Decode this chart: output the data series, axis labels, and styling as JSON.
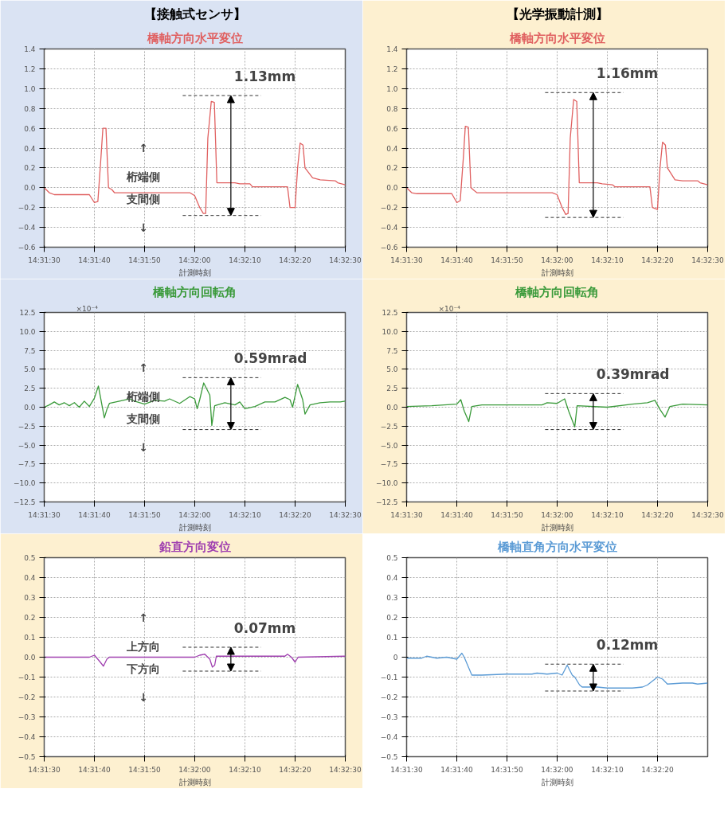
{
  "chart_data": [
    {
      "type": "line",
      "subtitle": "【接触式センサ】",
      "title": "橋軸方向水平変位",
      "xlabel": "計測時刻",
      "xlim": [
        14.525,
        14.54167
      ],
      "ylim": [
        -0.6,
        1.4
      ],
      "xticks": [
        {
          "value": 14.525,
          "label": "14:31:30"
        },
        {
          "value": 14.52778,
          "label": "14:31:40"
        },
        {
          "value": 14.53056,
          "label": "14:31:50"
        },
        {
          "value": 14.53333,
          "label": "14:32:00"
        },
        {
          "value": 14.53611,
          "label": "14:32:10"
        },
        {
          "value": 14.53889,
          "label": "14:32:20"
        },
        {
          "value": 14.54167,
          "label": "14:32:30"
        }
      ],
      "yticks": [
        {
          "value": -0.6,
          "label": "−0.6"
        },
        {
          "value": -0.4,
          "label": "−0.4"
        },
        {
          "value": -0.2,
          "label": "−0.2"
        },
        {
          "value": 0,
          "label": "0.0"
        },
        0.2,
        0.4,
        0.6,
        0.8,
        {
          "value": 1,
          "label": "1.0"
        },
        1.2,
        1.4
      ],
      "grid": true,
      "series": [
        {
          "color": "#e06060",
          "x": [
            14.525,
            14.52528,
            14.52556,
            14.5275,
            14.52778,
            14.52797,
            14.52814,
            14.52825,
            14.52842,
            14.52856,
            14.52875,
            14.52889,
            14.53306,
            14.53333,
            14.53361,
            14.53381,
            14.53394,
            14.53406,
            14.53425,
            14.53442,
            14.53456,
            14.53556,
            14.53583,
            14.53639,
            14.53653,
            14.53847,
            14.53861,
            14.53889,
            14.53903,
            14.53917,
            14.53933,
            14.53944,
            14.53986,
            14.54028,
            14.54111,
            14.54125,
            14.54167
          ],
          "values": [
            0.0,
            -0.05,
            -0.07,
            -0.07,
            -0.15,
            -0.14,
            0.3,
            0.6,
            0.6,
            0.0,
            -0.02,
            -0.05,
            -0.05,
            -0.08,
            -0.2,
            -0.26,
            -0.26,
            0.5,
            0.87,
            0.86,
            0.05,
            0.05,
            0.04,
            0.04,
            0.01,
            0.01,
            -0.2,
            -0.2,
            0.2,
            0.45,
            0.43,
            0.2,
            0.1,
            0.08,
            0.07,
            0.05,
            0.03
          ]
        }
      ],
      "ref_lines": [
        {
          "axis": "y",
          "value": 0.93,
          "color": "#333333",
          "line_style": "dashed"
        },
        {
          "axis": "y",
          "value": -0.28,
          "color": "#333333",
          "line_style": "dashed"
        }
      ],
      "annotations": [
        "1.13mm",
        "↑",
        "桁端側",
        "支間側",
        "↓"
      ]
    },
    {
      "type": "line",
      "subtitle": "【光学振動計測】",
      "title": "橋軸方向水平変位",
      "xlabel": "計測時刻",
      "xlim": [
        14.525,
        14.54167
      ],
      "ylim": [
        -0.6,
        1.4
      ],
      "xticks": [
        {
          "value": 14.525,
          "label": "14:31:30"
        },
        {
          "value": 14.52778,
          "label": "14:31:40"
        },
        {
          "value": 14.53056,
          "label": "14:31:50"
        },
        {
          "value": 14.53333,
          "label": "14:32:00"
        },
        {
          "value": 14.53611,
          "label": "14:32:10"
        },
        {
          "value": 14.53889,
          "label": "14:32:20"
        },
        {
          "value": 14.54167,
          "label": "14:32:30"
        }
      ],
      "yticks": [
        {
          "value": -0.6,
          "label": "−0.6"
        },
        {
          "value": -0.4,
          "label": "−0.4"
        },
        {
          "value": -0.2,
          "label": "−0.2"
        },
        {
          "value": 0,
          "label": "0.0"
        },
        0.2,
        0.4,
        0.6,
        0.8,
        {
          "value": 1,
          "label": "1.0"
        },
        1.2,
        1.4
      ],
      "grid": true,
      "series": [
        {
          "color": "#e06060",
          "x": [
            14.525,
            14.52528,
            14.52556,
            14.5275,
            14.52778,
            14.52797,
            14.52814,
            14.52825,
            14.52842,
            14.52856,
            14.52875,
            14.52889,
            14.53306,
            14.53333,
            14.53361,
            14.53381,
            14.53394,
            14.53406,
            14.53425,
            14.53442,
            14.53456,
            14.53556,
            14.53583,
            14.53639,
            14.53653,
            14.53847,
            14.53861,
            14.53889,
            14.53903,
            14.53917,
            14.53933,
            14.53944,
            14.53986,
            14.54028,
            14.54111,
            14.54125,
            14.54167
          ],
          "values": [
            0.0,
            -0.05,
            -0.06,
            -0.06,
            -0.15,
            -0.13,
            0.3,
            0.62,
            0.61,
            0.0,
            -0.03,
            -0.05,
            -0.05,
            -0.07,
            -0.2,
            -0.27,
            -0.26,
            0.5,
            0.89,
            0.87,
            0.05,
            0.05,
            0.04,
            0.03,
            0.01,
            0.01,
            -0.2,
            -0.22,
            0.2,
            0.46,
            0.43,
            0.2,
            0.08,
            0.07,
            0.07,
            0.05,
            0.03
          ]
        }
      ],
      "ref_lines": [
        {
          "axis": "y",
          "value": 0.96,
          "color": "#333333",
          "line_style": "dashed"
        },
        {
          "axis": "y",
          "value": -0.3,
          "color": "#333333",
          "line_style": "dashed"
        }
      ],
      "annotations": [
        "1.16mm"
      ]
    },
    {
      "type": "line",
      "title": "橋軸方向回転角",
      "xlabel": "計測時刻",
      "ylabel": "×10⁻⁴",
      "xlim": [
        14.525,
        14.54167
      ],
      "ylim": [
        -12.5,
        12.5
      ],
      "xticks": [
        {
          "value": 14.525,
          "label": "14:31:30"
        },
        {
          "value": 14.52778,
          "label": "14:31:40"
        },
        {
          "value": 14.53056,
          "label": "14:31:50"
        },
        {
          "value": 14.53333,
          "label": "14:32:00"
        },
        {
          "value": 14.53611,
          "label": "14:32:10"
        },
        {
          "value": 14.53889,
          "label": "14:32:20"
        },
        {
          "value": 14.54167,
          "label": "14:32:30"
        }
      ],
      "yticks": [
        {
          "value": -12.5,
          "label": "−12.5"
        },
        {
          "value": -10,
          "label": "−10.0"
        },
        {
          "value": -7.5,
          "label": "−7.5"
        },
        {
          "value": -5,
          "label": "−5.0"
        },
        {
          "value": -2.5,
          "label": "−2.5"
        },
        {
          "value": 0,
          "label": "0.0"
        },
        2.5,
        {
          "value": 5,
          "label": "5.0"
        },
        7.5,
        {
          "value": 10,
          "label": "10.0"
        },
        12.5
      ],
      "grid": true,
      "series": [
        {
          "color": "#3a9a3a",
          "x": [
            14.525,
            14.52528,
            14.52556,
            14.52583,
            14.52611,
            14.52639,
            14.52667,
            14.52694,
            14.52722,
            14.5275,
            14.52778,
            14.528,
            14.52814,
            14.52833,
            14.52847,
            14.52861,
            14.52917,
            14.52972,
            14.53,
            14.53056,
            14.53111,
            14.53167,
            14.53194,
            14.5325,
            14.53306,
            14.53333,
            14.53347,
            14.53361,
            14.53383,
            14.53417,
            14.53428,
            14.53444,
            14.535,
            14.53556,
            14.53583,
            14.53611,
            14.53667,
            14.53722,
            14.53778,
            14.53833,
            14.53861,
            14.53875,
            14.53903,
            14.53931,
            14.53944,
            14.53972,
            14.54028,
            14.54083,
            14.54139,
            14.54167
          ],
          "values": [
            0.0,
            0.3,
            0.7,
            0.3,
            0.6,
            0.2,
            0.6,
            0.0,
            0.8,
            0.1,
            1.2,
            2.8,
            1.0,
            -1.4,
            -0.3,
            0.5,
            0.8,
            1.1,
            0.8,
            0.4,
            0.9,
            0.8,
            1.1,
            0.5,
            1.4,
            1.1,
            -0.2,
            1.0,
            3.2,
            1.6,
            -2.4,
            0.2,
            0.6,
            0.3,
            0.7,
            -0.2,
            0.1,
            0.7,
            0.7,
            1.3,
            1.0,
            0.0,
            3.0,
            1.0,
            -0.9,
            0.3,
            0.6,
            0.7,
            0.7,
            0.8
          ]
        }
      ],
      "ref_lines": [
        {
          "axis": "y",
          "value": 3.9,
          "color": "#333333",
          "line_style": "dashed"
        },
        {
          "axis": "y",
          "value": -2.95,
          "color": "#333333",
          "line_style": "dashed"
        }
      ],
      "annotations": [
        "0.59mrad",
        "↑",
        "桁端側",
        "支間側",
        "↓"
      ]
    },
    {
      "type": "line",
      "title": "橋軸方向回転角",
      "xlabel": "計測時刻",
      "ylabel": "×10⁻⁴",
      "xlim": [
        14.525,
        14.54167
      ],
      "ylim": [
        -12.5,
        12.5
      ],
      "xticks": [
        {
          "value": 14.525,
          "label": "14:31:30"
        },
        {
          "value": 14.52778,
          "label": "14:31:40"
        },
        {
          "value": 14.53056,
          "label": "14:31:50"
        },
        {
          "value": 14.53333,
          "label": "14:32:00"
        },
        {
          "value": 14.53611,
          "label": "14:32:10"
        },
        {
          "value": 14.53889,
          "label": "14:32:20"
        },
        {
          "value": 14.54167,
          "label": "14:32:30"
        }
      ],
      "yticks": [
        {
          "value": -12.5,
          "label": "−12.5"
        },
        {
          "value": -10,
          "label": "−10.0"
        },
        {
          "value": -7.5,
          "label": "−7.5"
        },
        {
          "value": -5,
          "label": "−5.0"
        },
        {
          "value": -2.5,
          "label": "−2.5"
        },
        {
          "value": 0,
          "label": "0.0"
        },
        2.5,
        {
          "value": 5,
          "label": "5.0"
        },
        7.5,
        {
          "value": 10,
          "label": "10.0"
        },
        12.5
      ],
      "grid": true,
      "series": [
        {
          "color": "#3a9a3a",
          "x": [
            14.525,
            14.52639,
            14.52778,
            14.528,
            14.52819,
            14.52844,
            14.52861,
            14.52917,
            14.53056,
            14.5325,
            14.53278,
            14.53333,
            14.53375,
            14.53397,
            14.53431,
            14.53444,
            14.53611,
            14.5375,
            14.53833,
            14.53875,
            14.53903,
            14.53931,
            14.53958,
            14.54028,
            14.54167
          ],
          "values": [
            0.1,
            0.2,
            0.4,
            1.0,
            -0.5,
            -1.9,
            0.1,
            0.3,
            0.3,
            0.3,
            0.6,
            0.5,
            1.1,
            -0.5,
            -2.6,
            0.2,
            0.0,
            0.4,
            0.6,
            0.9,
            -0.3,
            -1.3,
            0.1,
            0.4,
            0.3
          ]
        }
      ],
      "ref_lines": [
        {
          "axis": "y",
          "value": 1.8,
          "color": "#333333",
          "line_style": "dashed"
        },
        {
          "axis": "y",
          "value": -2.95,
          "color": "#333333",
          "line_style": "dashed"
        }
      ],
      "annotations": [
        "0.39mrad"
      ]
    },
    {
      "type": "line",
      "title": "鉛直方向変位",
      "xlabel": "計測時刻",
      "xlim": [
        14.525,
        14.54167
      ],
      "ylim": [
        -0.5,
        0.5
      ],
      "xticks": [
        {
          "value": 14.525,
          "label": "14:31:30"
        },
        {
          "value": 14.52778,
          "label": "14:31:40"
        },
        {
          "value": 14.53056,
          "label": "14:31:50"
        },
        {
          "value": 14.53333,
          "label": "14:32:00"
        },
        {
          "value": 14.53611,
          "label": "14:32:10"
        },
        {
          "value": 14.53889,
          "label": "14:32:20"
        },
        {
          "value": 14.54167,
          "label": "14:32:30"
        }
      ],
      "yticks": [
        {
          "value": -0.5,
          "label": "−0.5"
        },
        {
          "value": -0.4,
          "label": "−0.4"
        },
        {
          "value": -0.3,
          "label": "−0.3"
        },
        {
          "value": -0.2,
          "label": "−0.2"
        },
        {
          "value": -0.1,
          "label": "−0.1"
        },
        {
          "value": 0,
          "label": "0.0"
        },
        0.1,
        0.2,
        0.3,
        0.4,
        0.5
      ],
      "grid": true,
      "series": [
        {
          "color": "#a040b0",
          "x": [
            14.525,
            14.5275,
            14.52778,
            14.52806,
            14.52828,
            14.52847,
            14.52861,
            14.53333,
            14.53361,
            14.53389,
            14.53417,
            14.53431,
            14.53444,
            14.53453,
            14.53833,
            14.53847,
            14.53869,
            14.53889,
            14.53906,
            14.54167
          ],
          "values": [
            0.0,
            0.0,
            0.01,
            -0.02,
            -0.045,
            -0.01,
            0.0,
            0.0,
            0.01,
            0.015,
            -0.01,
            -0.05,
            -0.04,
            0.005,
            0.005,
            0.015,
            0.0,
            -0.025,
            0.0,
            0.005
          ]
        }
      ],
      "ref_lines": [
        {
          "axis": "y",
          "value": 0.05,
          "color": "#333333",
          "line_style": "dashed"
        },
        {
          "axis": "y",
          "value": -0.07,
          "color": "#333333",
          "line_style": "dashed"
        }
      ],
      "annotations": [
        "0.07mm",
        "↑",
        "上方向",
        "下方向",
        "↓"
      ]
    },
    {
      "type": "line",
      "title": "橋軸直角方向水平変位",
      "xlabel": "計測時刻",
      "xlim": [
        14.525,
        14.54167
      ],
      "ylim": [
        -0.5,
        0.5
      ],
      "xticks": [
        {
          "value": 14.525,
          "label": "14:31:30"
        },
        {
          "value": 14.52778,
          "label": "14:31:40"
        },
        {
          "value": 14.53056,
          "label": "14:31:50"
        },
        {
          "value": 14.53333,
          "label": "14:32:00"
        },
        {
          "value": 14.53611,
          "label": "14:32:10"
        },
        {
          "value": 14.53889,
          "label": "14:32:20"
        }
      ],
      "yticks": [
        -0.5,
        -0.4,
        -0.3,
        -0.2,
        -0.1,
        0,
        0.1,
        0.2,
        0.3,
        0.4,
        0.5
      ],
      "grid": true,
      "series": [
        {
          "color": "#5b9bd5",
          "x": [
            14.525,
            14.52583,
            14.52611,
            14.52667,
            14.52722,
            14.52778,
            14.52806,
            14.52819,
            14.52833,
            14.52847,
            14.52861,
            14.52917,
            14.53056,
            14.53194,
            14.53222,
            14.53278,
            14.53333,
            14.53361,
            14.53389,
            14.53417,
            14.53431,
            14.53458,
            14.53472,
            14.53556,
            14.53611,
            14.5375,
            14.53806,
            14.53833,
            14.53889,
            14.53917,
            14.53944,
            14.54028,
            14.54083,
            14.54111,
            14.54167
          ],
          "values": [
            -0.005,
            -0.005,
            0.005,
            -0.005,
            0.0,
            -0.01,
            0.02,
            0.0,
            -0.03,
            -0.06,
            -0.09,
            -0.09,
            -0.085,
            -0.085,
            -0.08,
            -0.085,
            -0.08,
            -0.09,
            -0.04,
            -0.09,
            -0.1,
            -0.14,
            -0.15,
            -0.15,
            -0.155,
            -0.155,
            -0.15,
            -0.14,
            -0.1,
            -0.11,
            -0.135,
            -0.13,
            -0.13,
            -0.135,
            -0.13
          ]
        }
      ],
      "ref_lines": [
        {
          "axis": "y",
          "value": -0.035,
          "color": "#333333",
          "line_style": "dashed"
        },
        {
          "axis": "y",
          "value": -0.17,
          "color": "#333333",
          "line_style": "dashed"
        }
      ],
      "annotations": [
        "0.12mm"
      ]
    }
  ]
}
